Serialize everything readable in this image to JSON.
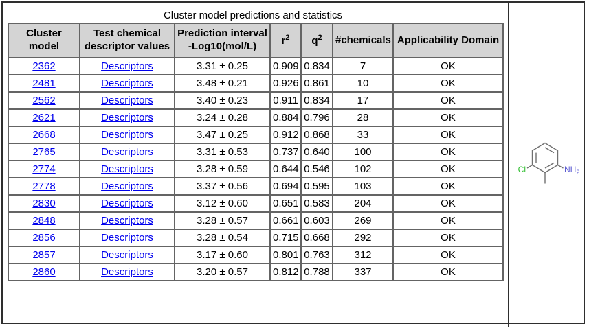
{
  "page": {
    "title": "Cluster model predictions and statistics"
  },
  "table": {
    "columns": [
      {
        "label": "Cluster model"
      },
      {
        "label": "Test chemical descriptor values"
      },
      {
        "label": "Prediction interval -Log10(mol/L)"
      },
      {
        "label": "r",
        "sup": "2"
      },
      {
        "label": "q",
        "sup": "2"
      },
      {
        "label": "#chemicals"
      },
      {
        "label": "Applicability Domain"
      }
    ],
    "rows": [
      {
        "cluster_model": "2362",
        "descriptors": "Descriptors",
        "prediction_interval": "3.31 ± 0.25",
        "r2": "0.909",
        "q2": "0.834",
        "chemicals": "7",
        "domain": "OK"
      },
      {
        "cluster_model": "2481",
        "descriptors": "Descriptors",
        "prediction_interval": "3.48 ± 0.21",
        "r2": "0.926",
        "q2": "0.861",
        "chemicals": "10",
        "domain": "OK"
      },
      {
        "cluster_model": "2562",
        "descriptors": "Descriptors",
        "prediction_interval": "3.40 ± 0.23",
        "r2": "0.911",
        "q2": "0.834",
        "chemicals": "17",
        "domain": "OK"
      },
      {
        "cluster_model": "2621",
        "descriptors": "Descriptors",
        "prediction_interval": "3.24 ± 0.28",
        "r2": "0.884",
        "q2": "0.796",
        "chemicals": "28",
        "domain": "OK"
      },
      {
        "cluster_model": "2668",
        "descriptors": "Descriptors",
        "prediction_interval": "3.47 ± 0.25",
        "r2": "0.912",
        "q2": "0.868",
        "chemicals": "33",
        "domain": "OK"
      },
      {
        "cluster_model": "2765",
        "descriptors": "Descriptors",
        "prediction_interval": "3.31 ± 0.53",
        "r2": "0.737",
        "q2": "0.640",
        "chemicals": "100",
        "domain": "OK"
      },
      {
        "cluster_model": "2774",
        "descriptors": "Descriptors",
        "prediction_interval": "3.28 ± 0.59",
        "r2": "0.644",
        "q2": "0.546",
        "chemicals": "102",
        "domain": "OK"
      },
      {
        "cluster_model": "2778",
        "descriptors": "Descriptors",
        "prediction_interval": "3.37 ± 0.56",
        "r2": "0.694",
        "q2": "0.595",
        "chemicals": "103",
        "domain": "OK"
      },
      {
        "cluster_model": "2830",
        "descriptors": "Descriptors",
        "prediction_interval": "3.12 ± 0.60",
        "r2": "0.651",
        "q2": "0.583",
        "chemicals": "204",
        "domain": "OK"
      },
      {
        "cluster_model": "2848",
        "descriptors": "Descriptors",
        "prediction_interval": "3.28 ± 0.57",
        "r2": "0.661",
        "q2": "0.603",
        "chemicals": "269",
        "domain": "OK"
      },
      {
        "cluster_model": "2856",
        "descriptors": "Descriptors",
        "prediction_interval": "3.28 ± 0.54",
        "r2": "0.715",
        "q2": "0.668",
        "chemicals": "292",
        "domain": "OK"
      },
      {
        "cluster_model": "2857",
        "descriptors": "Descriptors",
        "prediction_interval": "3.17 ± 0.60",
        "r2": "0.801",
        "q2": "0.763",
        "chemicals": "312",
        "domain": "OK"
      },
      {
        "cluster_model": "2860",
        "descriptors": "Descriptors",
        "prediction_interval": "3.20 ± 0.57",
        "r2": "0.812",
        "q2": "0.788",
        "chemicals": "337",
        "domain": "OK"
      }
    ]
  },
  "molecule": {
    "chlorine_label": "Cl",
    "amine_label": "NH",
    "amine_subscript": "2"
  },
  "colors": {
    "header_bg": "#d4d4d4",
    "link": "#0000ee",
    "cell_border": "#646464",
    "frame_border": "#2e2e2e",
    "bond": "#6f6f6f",
    "chlorine": "#2fbe2f",
    "nitrogen": "#5a5ad2"
  }
}
